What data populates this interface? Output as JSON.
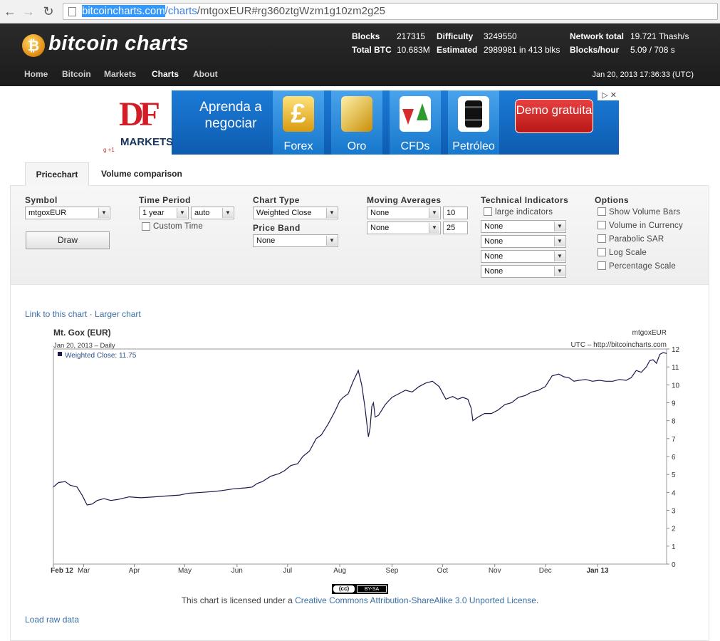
{
  "browser": {
    "url_domain": "bitcoincharts.com",
    "url_path1": "/charts",
    "url_rest": "/mtgoxEUR#rg360ztgWzm1g10zm2g25",
    "back_glyph": "←",
    "forward_glyph": "→",
    "reload_glyph": "↻"
  },
  "header": {
    "logo_text": "bitcoin charts",
    "logo_coin_glyph": "₿",
    "stats": {
      "blocks_label": "Blocks",
      "blocks_value": "217315",
      "total_btc_label": "Total BTC",
      "total_btc_value": "10.683M",
      "difficulty_label": "Difficulty",
      "difficulty_value": "3249550",
      "estimated_label": "Estimated",
      "estimated_value": "2989981 in 413 blks",
      "network_total_label": "Network total",
      "network_total_value": "19.721 Thash/s",
      "blocks_hour_label": "Blocks/hour",
      "blocks_hour_value": "5.09 / 708 s"
    },
    "nav": [
      "Home",
      "Bitcoin",
      "Markets",
      "Charts",
      "About"
    ],
    "active_nav": "Charts",
    "datetime": "Jan 20, 2013 17:36:33 (UTC)"
  },
  "ad": {
    "brand": "DF",
    "markets": "MARKETS",
    "headline": "Aprenda a negociar",
    "tiles": [
      "Forex",
      "Oro",
      "CFDs",
      "Petróleo"
    ],
    "cta": "Demo gratuita",
    "close": "▷ ✕",
    "gplus": "g +1"
  },
  "tabs": {
    "pricechart": "Pricechart",
    "volume": "Volume comparison"
  },
  "form": {
    "symbol_label": "Symbol",
    "symbol_value": "mtgoxEUR",
    "time_period_label": "Time Period",
    "period_value": "1 year",
    "period_res": "auto",
    "custom_time": "Custom Time",
    "chart_type_label": "Chart Type",
    "chart_type_value": "Weighted Close",
    "price_band_label": "Price Band",
    "price_band_value": "None",
    "ma_label": "Moving Averages",
    "ma1_type": "None",
    "ma1_value": "10",
    "ma2_type": "None",
    "ma2_value": "25",
    "ti_label": "Technical Indicators",
    "large_indicators": "large indicators",
    "ti_values": [
      "None",
      "None",
      "None",
      "None"
    ],
    "options_label": "Options",
    "options": [
      "Show Volume Bars",
      "Volume in Currency",
      "Parabolic SAR",
      "Log Scale",
      "Percentage Scale"
    ],
    "draw_button": "Draw",
    "arrow_glyph": "▼"
  },
  "links": {
    "link_to_chart": "Link to this chart",
    "separator": " · ",
    "larger_chart": "Larger chart",
    "load_raw": "Load raw data"
  },
  "license": {
    "prefix": "This chart is licensed under a ",
    "link": "Creative Commons Attribution-ShareAlike 3.0 Unported License",
    "suffix": ".",
    "badge_left": "(cc)",
    "badge_right": "BY-SA"
  },
  "chart_data": {
    "type": "line",
    "title": "Mt. Gox (EUR)",
    "subtitle": "Jan 20, 2013 – Daily",
    "symbol": "mtgoxEUR",
    "tz_note": "UTC – http://bitcoincharts.com",
    "legend": "Weighted Close: 11.75",
    "legend_placement": "top-left",
    "ylim": [
      0,
      12
    ],
    "y_ticks": [
      "0",
      "1",
      "2",
      "3",
      "4",
      "5",
      "6",
      "7",
      "8",
      "9",
      "10",
      "11",
      "12"
    ],
    "x_ticks": [
      "Feb 12",
      "Mar",
      "Apr",
      "May",
      "Jun",
      "Jul",
      "Aug",
      "Sep",
      "Oct",
      "Nov",
      "Dec",
      "Jan 13"
    ],
    "x_tick_bold": [
      "Feb 12",
      "Jan 13"
    ],
    "series_color": "#1a1a4d",
    "x_days": [
      0,
      3,
      7,
      10,
      14,
      17,
      20,
      23,
      26,
      30,
      34,
      38,
      45,
      52,
      60,
      67,
      75,
      80,
      88,
      95,
      100,
      107,
      114,
      118,
      121,
      124,
      129,
      134,
      137,
      141,
      145,
      148,
      152,
      156,
      159,
      163,
      167,
      170,
      172,
      175,
      178,
      181,
      183,
      185,
      187,
      188,
      189,
      190,
      191,
      193,
      197,
      201,
      205,
      209,
      213,
      217,
      221,
      225,
      229,
      233,
      237,
      240,
      243,
      246,
      248,
      249,
      252,
      256,
      260,
      264,
      268,
      272,
      276,
      280,
      284,
      288,
      292,
      296,
      300,
      303,
      306,
      309,
      312,
      316,
      320,
      324,
      328,
      332,
      336,
      340,
      343,
      346,
      349,
      352,
      354,
      356,
      358,
      360,
      362,
      364
    ],
    "values": [
      4.3,
      4.55,
      4.6,
      4.4,
      4.3,
      3.85,
      3.3,
      3.35,
      3.55,
      3.65,
      3.55,
      3.6,
      3.75,
      3.7,
      3.75,
      3.8,
      3.85,
      3.95,
      4.0,
      4.05,
      4.1,
      4.2,
      4.25,
      4.3,
      4.5,
      4.6,
      4.9,
      5.05,
      5.2,
      5.5,
      5.6,
      6.0,
      6.3,
      7.0,
      7.2,
      7.8,
      8.5,
      9.1,
      9.3,
      9.5,
      10.2,
      10.8,
      10.0,
      8.7,
      7.1,
      7.6,
      8.8,
      9.0,
      8.2,
      8.3,
      8.9,
      9.3,
      9.5,
      9.7,
      9.6,
      9.9,
      10.1,
      10.2,
      9.9,
      9.2,
      9.35,
      9.2,
      9.3,
      9.2,
      8.7,
      8.0,
      8.2,
      8.4,
      8.4,
      8.6,
      8.9,
      9.0,
      9.3,
      9.4,
      9.6,
      9.7,
      9.9,
      10.5,
      10.6,
      10.45,
      10.4,
      10.2,
      10.25,
      10.3,
      10.2,
      10.25,
      10.2,
      10.2,
      10.3,
      10.25,
      10.4,
      10.8,
      10.7,
      11.0,
      11.35,
      11.4,
      11.2,
      11.7,
      11.8,
      11.75
    ]
  }
}
